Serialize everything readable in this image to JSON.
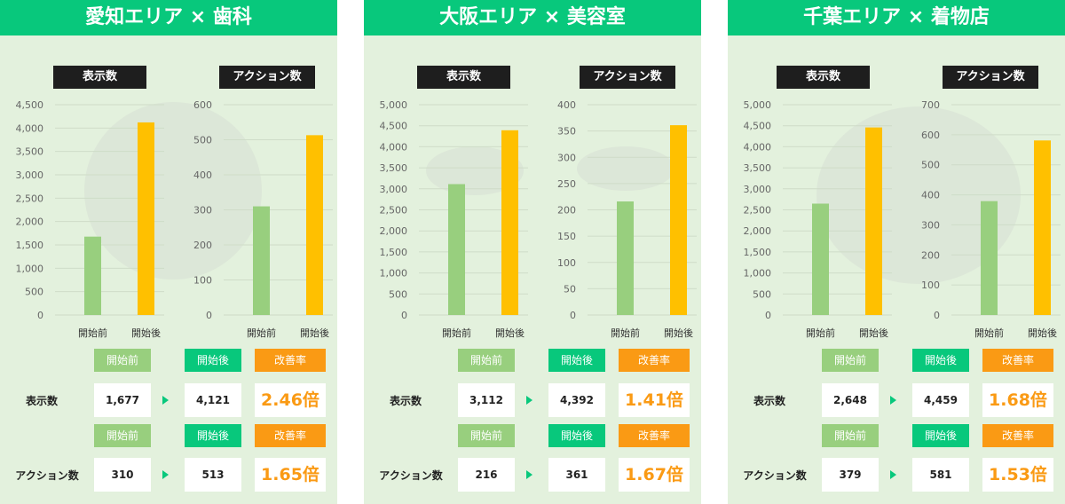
{
  "colors": {
    "header": "#08c87c",
    "panel_bg": "#e3f1dd",
    "before": "#98cf7e",
    "after": "#ffc000",
    "rate": "#fa9a14"
  },
  "panels": [
    {
      "title": "愛知エリア × 歯科",
      "chart_labels": {
        "impressions": "表示数",
        "actions": "アクション数"
      },
      "table": {
        "header_before": "開始前",
        "header_after": "開始後",
        "header_rate": "改善率",
        "impressions": {
          "label": "表示数",
          "before": "1,677",
          "after": "4,121",
          "rate": "2.46倍"
        },
        "actions": {
          "label": "アクション数",
          "before": "310",
          "after": "513",
          "rate": "1.65倍"
        }
      }
    },
    {
      "title": "大阪エリア × 美容室",
      "chart_labels": {
        "impressions": "表示数",
        "actions": "アクション数"
      },
      "table": {
        "header_before": "開始前",
        "header_after": "開始後",
        "header_rate": "改善率",
        "impressions": {
          "label": "表示数",
          "before": "3,112",
          "after": "4,392",
          "rate": "1.41倍"
        },
        "actions": {
          "label": "アクション数",
          "before": "216",
          "after": "361",
          "rate": "1.67倍"
        }
      }
    },
    {
      "title": "千葉エリア × 着物店",
      "chart_labels": {
        "impressions": "表示数",
        "actions": "アクション数"
      },
      "table": {
        "header_before": "開始前",
        "header_after": "開始後",
        "header_rate": "改善率",
        "impressions": {
          "label": "表示数",
          "before": "2,648",
          "after": "4,459",
          "rate": "1.68倍"
        },
        "actions": {
          "label": "アクション数",
          "before": "379",
          "after": "581",
          "rate": "1.53倍"
        }
      }
    }
  ],
  "chart_data": [
    {
      "type": "bar",
      "categories": [
        "開始前",
        "開始後"
      ],
      "values": [
        1677,
        4121
      ],
      "ylim": [
        0,
        4500
      ],
      "yticks": [
        0,
        500,
        1000,
        1500,
        2000,
        2500,
        3000,
        3500,
        4000,
        4500
      ],
      "title": "表示数"
    },
    {
      "type": "bar",
      "categories": [
        "開始前",
        "開始後"
      ],
      "values": [
        310,
        513
      ],
      "ylim": [
        0,
        600
      ],
      "yticks": [
        0,
        100,
        200,
        300,
        400,
        500,
        600
      ],
      "title": "アクション数"
    },
    {
      "type": "bar",
      "categories": [
        "開始前",
        "開始後"
      ],
      "values": [
        3112,
        4392
      ],
      "ylim": [
        0,
        5000
      ],
      "yticks": [
        0,
        500,
        1000,
        1500,
        2000,
        2500,
        3000,
        3500,
        4000,
        4500,
        5000
      ],
      "title": "表示数"
    },
    {
      "type": "bar",
      "categories": [
        "開始前",
        "開始後"
      ],
      "values": [
        216,
        361
      ],
      "ylim": [
        0,
        400
      ],
      "yticks": [
        0,
        50,
        100,
        150,
        200,
        250,
        300,
        350,
        400
      ],
      "title": "アクション数"
    },
    {
      "type": "bar",
      "categories": [
        "開始前",
        "開始後"
      ],
      "values": [
        2648,
        4459
      ],
      "ylim": [
        0,
        5000
      ],
      "yticks": [
        0,
        500,
        1000,
        1500,
        2000,
        2500,
        3000,
        3500,
        4000,
        4500,
        5000
      ],
      "title": "表示数"
    },
    {
      "type": "bar",
      "categories": [
        "開始前",
        "開始後"
      ],
      "values": [
        379,
        581
      ],
      "ylim": [
        0,
        700
      ],
      "yticks": [
        0,
        100,
        200,
        300,
        400,
        500,
        600,
        700
      ],
      "title": "アクション数"
    }
  ]
}
